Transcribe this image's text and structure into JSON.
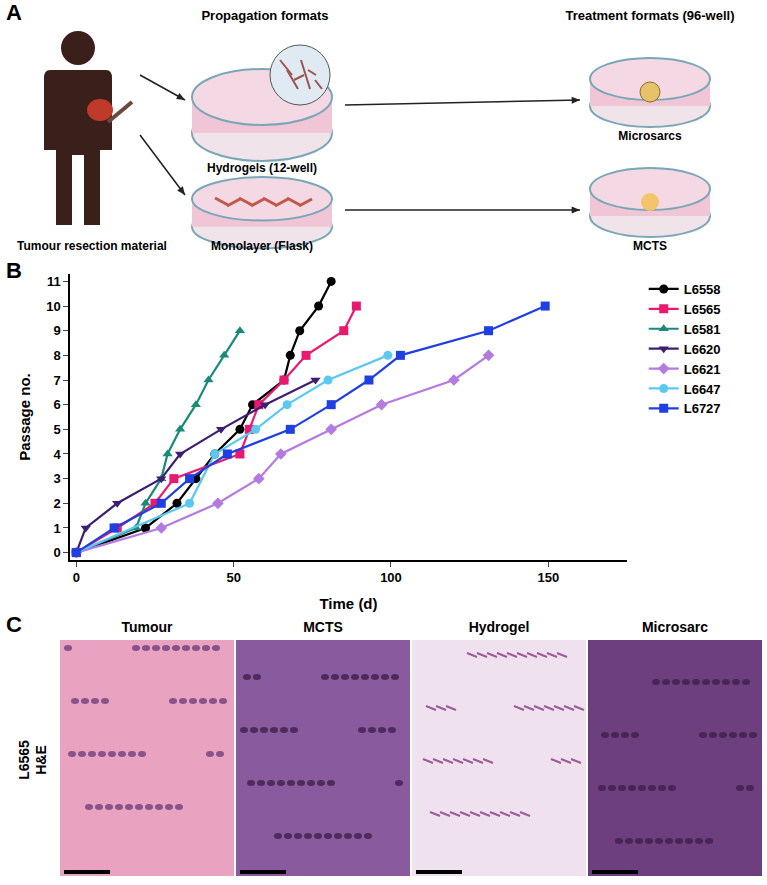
{
  "panel_a": {
    "letter": "A",
    "source_label": "Tumour resection material",
    "propagation_title": "Propagation formats",
    "treatment_title": "Treatment formats (96-well)",
    "hydrogel_label": "Hydrogels (12-well)",
    "monolayer_label": "Monolayer (Flask)",
    "microsarcs_label": "Microsarcs",
    "mcts_label": "MCTS"
  },
  "chart_data": {
    "letter": "B",
    "type": "line",
    "x_label": "Time (d)",
    "y_label": "Passage no.",
    "xlim": [
      -2,
      175
    ],
    "xticks": [
      0,
      50,
      100,
      150
    ],
    "ylim": [
      -0.3,
      11.3
    ],
    "yticks": [
      0,
      1,
      2,
      3,
      4,
      5,
      6,
      7,
      8,
      9,
      10,
      11
    ],
    "grid": false,
    "legend": "right",
    "series": [
      {
        "name": "L6558",
        "color": "#000000",
        "marker": "circle",
        "x": [
          0,
          22,
          32,
          38,
          44,
          52,
          56,
          66,
          68,
          71,
          77,
          81
        ],
        "values": [
          0,
          1,
          2,
          3,
          4,
          5,
          6,
          7,
          8,
          9,
          10,
          11
        ]
      },
      {
        "name": "L6565",
        "color": "#e8196e",
        "marker": "square",
        "x": [
          0,
          13,
          25,
          31,
          52,
          55,
          58,
          66,
          73,
          85,
          89
        ],
        "values": [
          0,
          1,
          2,
          3,
          4,
          5,
          6,
          7,
          8,
          9,
          10
        ]
      },
      {
        "name": "L6581",
        "color": "#1a8a7a",
        "marker": "triangle-up",
        "x": [
          0,
          19,
          22,
          27,
          29,
          33,
          38,
          42,
          47,
          52
        ],
        "values": [
          0,
          1,
          2,
          3,
          4,
          5,
          6,
          7,
          8,
          9
        ]
      },
      {
        "name": "L6620",
        "color": "#3c1f73",
        "marker": "triangle-down",
        "x": [
          0,
          3,
          13,
          27,
          33,
          46,
          60,
          76
        ],
        "values": [
          0,
          1,
          2,
          3,
          4,
          5,
          6,
          7
        ]
      },
      {
        "name": "L6621",
        "color": "#b57ae0",
        "marker": "diamond",
        "x": [
          0,
          27,
          45,
          58,
          65,
          81,
          97,
          120,
          131
        ],
        "values": [
          0,
          1,
          2,
          3,
          4,
          5,
          6,
          7,
          8
        ]
      },
      {
        "name": "L6647",
        "color": "#5cc8f0",
        "marker": "circle",
        "x": [
          0,
          36,
          44,
          57,
          67,
          80,
          99
        ],
        "values": [
          0,
          2,
          4,
          5,
          6,
          7,
          8
        ]
      },
      {
        "name": "L6727",
        "color": "#1f3fe0",
        "marker": "square",
        "x": [
          0,
          12,
          27,
          36,
          48,
          68,
          81,
          93,
          103,
          131,
          149
        ],
        "values": [
          0,
          1,
          2,
          3,
          4,
          5,
          6,
          7,
          8,
          9,
          10
        ]
      }
    ]
  },
  "panel_c": {
    "letter": "C",
    "row_label": [
      "L6565",
      "H&E"
    ],
    "columns": [
      "Tumour",
      "MCTS",
      "Hydrogel",
      "Microsarc"
    ]
  }
}
